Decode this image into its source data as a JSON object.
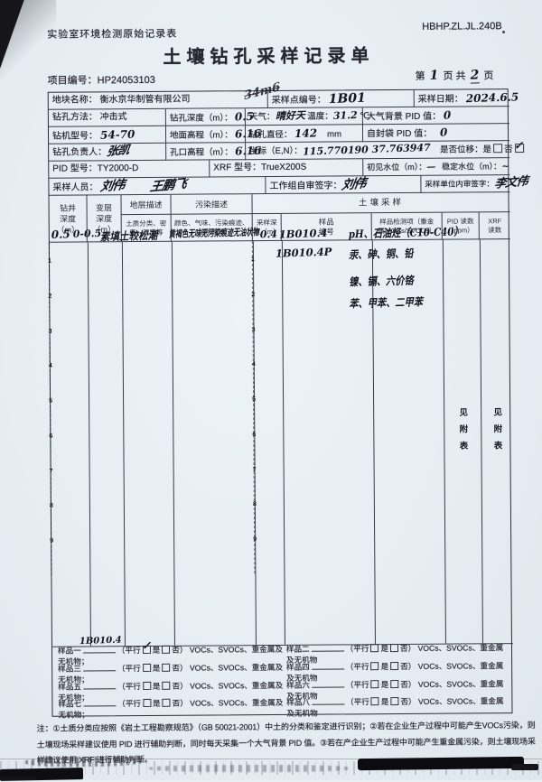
{
  "colors": {
    "page_bg": "#e8eef4",
    "print_ink": "#262630",
    "hand_ink": "#15151f",
    "border": "#34343f",
    "artifact_black": "#0d0d10"
  },
  "header": {
    "form_name": "实验室环境检测原始记录表",
    "doc_code": "HBHP.ZL.JL.240B",
    "title": "土壤钻孔采样记录单",
    "project_label": "项目编号：",
    "project_no": "HP24053103",
    "page_pre": "第",
    "page_num": "1",
    "page_mid": "页 共",
    "page_total": "2",
    "page_suf": "页"
  },
  "info": {
    "site_label": "地块名称：",
    "site": "衡水京华制管有限公司",
    "scribble": "34m6",
    "point_label": "采样点编号：",
    "point": "1B01",
    "date_label": "采样日期：",
    "date": "2024.6.5",
    "method_label": "钻孔方法：",
    "method": "冲击式",
    "depth_label": "钻孔深度（m）：",
    "depth": "0.5",
    "weather_label": "天气：",
    "weather": "晴好天",
    "temp_label": "温度：",
    "temp": "31.2",
    "temp_unit": "℃",
    "pid_bg_label": "大气背景 PID 值：",
    "pid_bg": "0",
    "rig_label": "钻机型号：",
    "rig": "54-70",
    "elev_label": "地面高程（m）：",
    "elev": "6.16",
    "diam_label": "钻孔直径：",
    "diam": "142",
    "diam_unit": "mm",
    "bag_pid_label": "自封袋 PID 值：",
    "bag_pid": "0",
    "driller_label": "钻孔负责人：",
    "driller": "张凯",
    "hole_elev_label": "孔口高程（m）：",
    "hole_elev": "6.16",
    "coord_label": "坐标（E,N）：",
    "coord": "115.770190  37.763947",
    "shift_label": "是否位移：",
    "shift_yes": "是",
    "shift_no": "否",
    "shift_mark": "✓",
    "pid_model_label": "PID 型号：",
    "pid_model": "TY2000-D",
    "xrf_model_label": "XRF 型号：",
    "xrf_model": "TrueX200S",
    "water_first_label": "初见水位（m）：",
    "water_first": "—",
    "water_stable_label": "稳定水位（m）：",
    "water_stable": "~",
    "sampler_label": "采样人员：",
    "sampler_1": "刘伟",
    "sampler_2": "王鹏飞",
    "group_sign_label": "工作组自审签字：",
    "group_sign": "刘伟",
    "unit_sign_label": "采样单位内审签字：",
    "unit_sign": "李文伟"
  },
  "table": {
    "h_drill": "钻井\n深度\n（m）",
    "h_layer": "变层\n深度\n（m）",
    "h_stratum": "地层描述",
    "h_stratum_sub": "土质分类、密度、湿度等",
    "h_pollution": "污染描述",
    "h_pollution_sub": "颜色、气味、污染痕迹、油状物等",
    "h_sampling": "土壤采样",
    "h_sample_depth": "采样深\n度（m）",
    "h_sample_no": "样品\n编号",
    "h_test_items": "样品检测项（重金属/VOCs/SVOCs）",
    "h_pid": "PID 读数\n（ppm）",
    "h_xrf": "XRF\n读数",
    "scale": [
      1,
      2,
      3,
      4,
      5,
      6,
      7,
      8,
      9
    ],
    "body": {
      "drill_depth": "0.5",
      "layer_depth": "0-0.5",
      "stratum": "素填土较松潮",
      "pollution": "黄褐色无味无污染痕迹无油状物",
      "sample_depth": "0.4",
      "sample_ids": [
        "1B010.4",
        "1B010.4P"
      ],
      "test_items": [
        "pH、石油烃（C10-C40）",
        "汞、砷、铜、铅",
        "镍、镉、六价铬",
        "苯、甲苯、二甲苯"
      ],
      "pid_note": "见附表",
      "xrf_note": "见附表"
    }
  },
  "footer": {
    "parallel_open": "（平行",
    "yes": "是",
    "no": "否",
    "parallel_close": "）",
    "suffix": "VOCs、SVOCs、重金属及无机物",
    "sep": "；",
    "check": "✓",
    "samples": [
      {
        "label": "样品一",
        "value": "1B010.4",
        "checked": true
      },
      {
        "label": "样品二",
        "value": "",
        "checked": false
      },
      {
        "label": "样品三",
        "value": "",
        "checked": false
      },
      {
        "label": "样品四",
        "value": "",
        "checked": false
      },
      {
        "label": "样品五",
        "value": "",
        "checked": false
      },
      {
        "label": "样品六",
        "value": "",
        "checked": false
      },
      {
        "label": "样品七",
        "value": "",
        "checked": false
      },
      {
        "label": "样品八",
        "value": "",
        "checked": false
      }
    ]
  },
  "note": {
    "text": "注：①土质分类应按照《岩土工程勘察规范》（GB 50021-2001）中土的分类和鉴定进行识别；②若在企业生产过程中可能产生VOCs污染，则土壤现场采样建议使用 PID 进行辅助判断，同时每天采集一个大气背景 PID 值。③若在产企业生产过程中可能产生重金属污染，则土壤现场采样建议使用 XRF 进行辅助判断。"
  }
}
